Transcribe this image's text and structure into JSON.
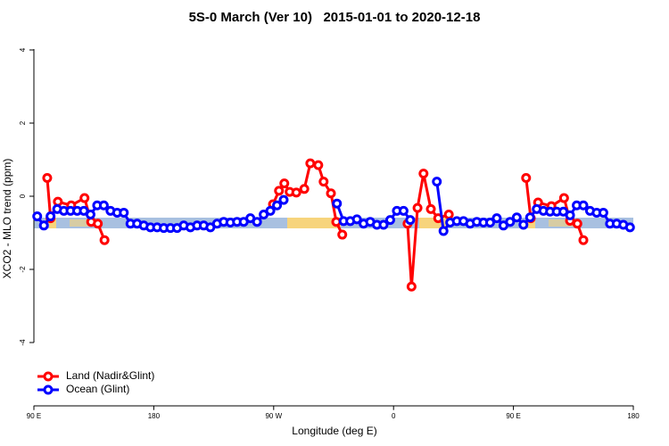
{
  "chart_data": {
    "type": "line",
    "title": "5S-0 March (Ver 10)   2015-01-01 to 2020-12-18",
    "xlabel": "Longitude (deg E)",
    "ylabel": "XCO2 - MLO trend (ppm)",
    "xlim": [
      90,
      540
    ],
    "xticks": [
      {
        "value": 90,
        "label": "90 E"
      },
      180,
      {
        "value": 270,
        "label": "90 W"
      },
      {
        "value": 360,
        "label": "0"
      },
      {
        "value": 450,
        "label": "90 E"
      },
      {
        "value": 540,
        "label": "180"
      }
    ],
    "ylim": [
      -5.7,
      4.4
    ],
    "yticks": [
      -4,
      -2,
      0,
      2,
      4
    ],
    "legend": "bottom-left",
    "series": [
      {
        "name": "Land (Nadir&Glint)",
        "color": "#ff0000",
        "x": [
          100,
          102.5,
          108,
          118,
          128,
          133,
          138,
          143,
          206,
          269.5,
          274,
          278,
          282,
          287,
          293,
          297.5,
          303.5,
          307.5,
          313,
          317,
          321.5,
          396,
          370.5,
          373.5,
          378,
          382.5,
          388,
          393.5,
          401.5,
          430,
          459.5,
          463,
          468.5,
          478.5,
          488,
          492.5,
          498,
          502.5
        ],
        "values": [
          0.5,
          -0.6,
          -0.15,
          -0.25,
          -0.05,
          -0.7,
          -0.75,
          -1.2,
          null,
          -0.22,
          0.15,
          0.35,
          0.12,
          0.1,
          0.2,
          0.9,
          0.85,
          0.4,
          0.08,
          -0.7,
          -1.05,
          null,
          -0.75,
          -2.47,
          -0.32,
          0.62,
          -0.35,
          -0.6,
          -0.5,
          null,
          0.5,
          -0.6,
          -0.17,
          -0.27,
          -0.05,
          -0.67,
          -0.75,
          -1.2
        ]
      },
      {
        "name": "Ocean (Glint)",
        "color": "#0000ff",
        "x": [
          92.5,
          97.5,
          102.5,
          107.5,
          112.5,
          117.5,
          122.5,
          127.5,
          132.5,
          137.5,
          142.5,
          147.5,
          152.5,
          157.5,
          162.5,
          167.5,
          172.5,
          177.5,
          182.5,
          187.5,
          192.5,
          197.5,
          202.5,
          207.5,
          212.5,
          217.5,
          222.5,
          227.5,
          232.5,
          237.5,
          242.5,
          247.5,
          252.5,
          257.5,
          262.5,
          267.5,
          272.5,
          277.5,
          282.5,
          287.5,
          292.5,
          297.5,
          302.5,
          307.5,
          312.5,
          317.5,
          322.5,
          327.5,
          332.5,
          337.5,
          342.5,
          347.5,
          352.5,
          357.5,
          362.5,
          367.5,
          372.5,
          377.5,
          382.5,
          387.5,
          392.5,
          397.5,
          402.5,
          407.5,
          412.5,
          417.5,
          422.5,
          427.5,
          432.5,
          437.5,
          442.5,
          447.5,
          452.5,
          457.5,
          462.5,
          467.5,
          472.5,
          477.5,
          482.5,
          487.5,
          492.5,
          497.5,
          502.5,
          507.5,
          512.5,
          517.5,
          522.5,
          527.5,
          532.5,
          537.5
        ],
        "values": [
          -0.55,
          -0.8,
          -0.55,
          -0.35,
          -0.4,
          -0.4,
          -0.4,
          -0.4,
          -0.5,
          -0.25,
          -0.25,
          -0.4,
          -0.45,
          -0.45,
          -0.75,
          -0.75,
          -0.8,
          -0.85,
          -0.85,
          -0.87,
          -0.87,
          -0.87,
          -0.8,
          -0.85,
          -0.8,
          -0.8,
          -0.85,
          -0.75,
          -0.7,
          -0.72,
          -0.7,
          -0.7,
          -0.6,
          -0.7,
          -0.5,
          -0.4,
          -0.25,
          -0.1,
          null,
          null,
          null,
          null,
          null,
          null,
          null,
          -0.2,
          -0.68,
          -0.68,
          -0.63,
          -0.75,
          -0.7,
          -0.78,
          -0.78,
          -0.65,
          -0.4,
          -0.4,
          -0.65,
          null,
          null,
          null,
          0.4,
          -0.95,
          -0.72,
          -0.68,
          -0.68,
          -0.75,
          -0.7,
          -0.72,
          -0.72,
          -0.6,
          -0.8,
          -0.7,
          -0.58,
          -0.78,
          -0.58,
          -0.35,
          -0.4,
          -0.42,
          -0.42,
          -0.42,
          -0.52,
          -0.25,
          -0.25,
          -0.4,
          -0.45,
          -0.45,
          -0.75,
          -0.75,
          -0.78,
          -0.85
        ]
      }
    ]
  }
}
